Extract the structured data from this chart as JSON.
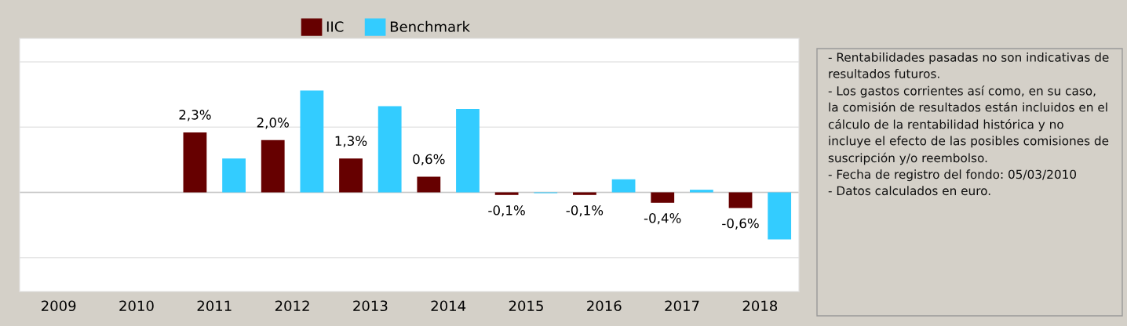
{
  "chart_data": {
    "type": "bar",
    "categories": [
      "2009",
      "2010",
      "2011",
      "2012",
      "2013",
      "2014",
      "2015",
      "2016",
      "2017",
      "2018"
    ],
    "series": [
      {
        "name": "IIC",
        "color": "#660000",
        "values": [
          null,
          null,
          2.3,
          2.0,
          1.3,
          0.6,
          -0.1,
          -0.1,
          -0.4,
          -0.6
        ],
        "value_labels": [
          null,
          null,
          "2,3%",
          "2,0%",
          "1,3%",
          "0,6%",
          "-0,1%",
          "-0,1%",
          "-0,4%",
          "-0,6%"
        ]
      },
      {
        "name": "Benchmark",
        "color": "#33ccff",
        "values": [
          null,
          null,
          1.3,
          3.9,
          3.3,
          3.2,
          -0.03,
          0.5,
          0.1,
          -1.8
        ]
      }
    ],
    "ylim": [
      -3.8,
      5.9
    ],
    "yticks": [
      {
        "value": -2.5,
        "label": null
      },
      {
        "value": 0,
        "label": null
      },
      {
        "value": 2.5,
        "label": null
      },
      {
        "value": 5,
        "label": null
      }
    ],
    "tick_labels": "x",
    "grid": "y",
    "legend": "top",
    "annotations": [
      "- Rentabilidades pasadas no son indicativas de resultados futuros.",
      "- Los gastos corrientes así como, en su caso, la comisión de resultados están incluidos en el cálculo de la rentabilidad histórica y no incluye el efecto de las posibles comisiones de suscripción y/o reembolso.",
      "- Fecha de registro del fondo: 05/03/2010",
      "- Datos calculados en euro."
    ]
  }
}
